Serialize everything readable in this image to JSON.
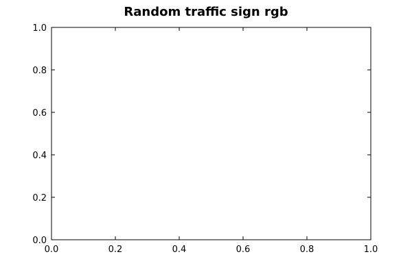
{
  "chart_data": {
    "type": "scatter",
    "title": "Random traffic sign rgb",
    "xlabel": "",
    "ylabel": "",
    "xlim": [
      0.0,
      1.0
    ],
    "ylim": [
      0.0,
      1.0
    ],
    "xticks": [
      "0.0",
      "0.2",
      "0.4",
      "0.6",
      "0.8",
      "1.0"
    ],
    "yticks": [
      "0.0",
      "0.2",
      "0.4",
      "0.6",
      "0.8",
      "1.0"
    ],
    "x": [],
    "y": [],
    "grid": false,
    "legend": "none"
  }
}
